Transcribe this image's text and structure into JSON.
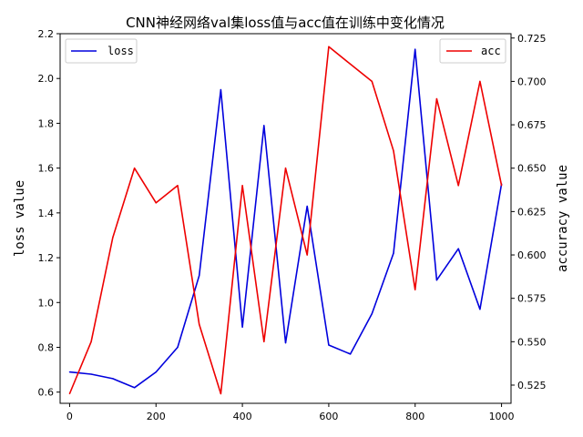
{
  "chart_data": {
    "type": "line",
    "title": "CNN神经网络val集loss值与acc值在训练中变化情况",
    "xlabel": "",
    "ylabel": "loss value",
    "y2label": "accuracy value",
    "x": [
      0,
      50,
      100,
      150,
      200,
      250,
      300,
      350,
      400,
      450,
      500,
      550,
      600,
      650,
      700,
      750,
      800,
      850,
      900,
      950,
      1000
    ],
    "xlim": [
      -22,
      1022
    ],
    "xticks": [
      0,
      200,
      400,
      600,
      800,
      1000
    ],
    "ylim": [
      0.55,
      2.2
    ],
    "yticks": [
      0.6,
      0.8,
      1.0,
      1.2,
      1.4,
      1.6,
      1.8,
      2.0,
      2.2
    ],
    "y2lim": [
      0.5145,
      0.7275
    ],
    "y2ticks": [
      0.525,
      0.55,
      0.575,
      0.6,
      0.625,
      0.65,
      0.675,
      0.7,
      0.725
    ],
    "series": [
      {
        "name": "loss",
        "axis": "left",
        "color": "#0000dd",
        "values": [
          0.69,
          0.68,
          0.66,
          0.62,
          0.69,
          0.8,
          1.12,
          1.95,
          0.89,
          1.79,
          0.82,
          1.43,
          0.81,
          0.77,
          0.95,
          1.22,
          2.13,
          1.1,
          1.24,
          0.97,
          1.53
        ]
      },
      {
        "name": "acc",
        "axis": "right",
        "color": "#ee0000",
        "values": [
          0.52,
          0.55,
          0.61,
          0.65,
          0.63,
          0.64,
          0.56,
          0.52,
          0.64,
          0.55,
          0.65,
          0.6,
          0.72,
          0.71,
          0.7,
          0.66,
          0.58,
          0.69,
          0.64,
          0.7,
          0.64
        ]
      }
    ],
    "legends": [
      {
        "series": "loss",
        "placement": "top-left"
      },
      {
        "series": "acc",
        "placement": "top-right"
      }
    ],
    "grid": false
  }
}
